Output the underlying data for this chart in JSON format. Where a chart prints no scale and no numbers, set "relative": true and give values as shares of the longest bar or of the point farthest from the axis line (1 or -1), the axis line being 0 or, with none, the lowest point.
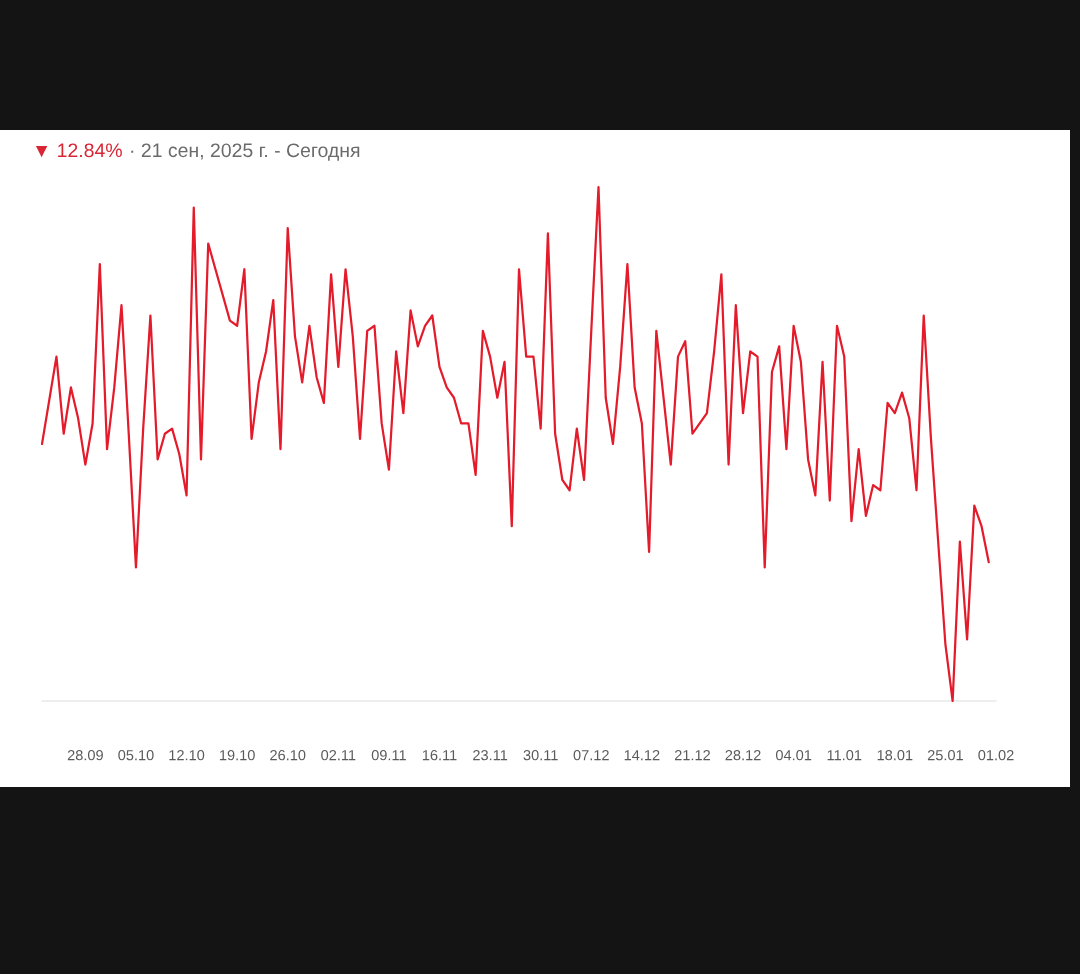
{
  "chart_data": {
    "type": "line",
    "relative": true,
    "title": "▼ 12.84%",
    "subtitle": "· 21 сен, 2025 г. - Сегодня",
    "tick_labels": "x",
    "x": [
      "2025-09-22",
      "2025-09-24",
      "2025-09-25",
      "2025-09-26",
      "2025-09-27",
      "2025-09-28",
      "2025-09-29",
      "2025-09-30",
      "2025-10-01",
      "2025-10-02",
      "2025-10-03",
      "2025-10-04",
      "2025-10-05",
      "2025-10-06",
      "2025-10-07",
      "2025-10-08",
      "2025-10-09",
      "2025-10-10",
      "2025-10-11",
      "2025-10-12",
      "2025-10-13",
      "2025-10-14",
      "2025-10-15",
      "2025-10-16",
      "2025-10-18",
      "2025-10-19",
      "2025-10-20",
      "2025-10-21",
      "2025-10-22",
      "2025-10-23",
      "2025-10-24",
      "2025-10-25",
      "2025-10-26",
      "2025-10-27",
      "2025-10-28",
      "2025-10-29",
      "2025-10-30",
      "2025-10-31",
      "2025-11-01",
      "2025-11-02",
      "2025-11-03",
      "2025-11-04",
      "2025-11-05",
      "2025-11-06",
      "2025-11-07",
      "2025-11-08",
      "2025-11-09",
      "2025-11-10",
      "2025-11-11",
      "2025-11-12",
      "2025-11-13",
      "2025-11-14",
      "2025-11-15",
      "2025-11-16",
      "2025-11-17",
      "2025-11-18",
      "2025-11-19",
      "2025-11-20",
      "2025-11-21",
      "2025-11-22",
      "2025-11-23",
      "2025-11-24",
      "2025-11-25",
      "2025-11-26",
      "2025-11-27",
      "2025-11-28",
      "2025-11-29",
      "2025-11-30",
      "2025-12-01",
      "2025-12-02",
      "2025-12-03",
      "2025-12-04",
      "2025-12-05",
      "2025-12-06",
      "2025-12-07",
      "2025-12-08",
      "2025-12-09",
      "2025-12-10",
      "2025-12-11",
      "2025-12-12",
      "2025-12-13",
      "2025-12-14",
      "2025-12-15",
      "2025-12-16",
      "2025-12-17",
      "2025-12-18",
      "2025-12-19",
      "2025-12-20",
      "2025-12-21",
      "2025-12-22",
      "2025-12-23",
      "2025-12-24",
      "2025-12-25",
      "2025-12-26",
      "2025-12-27",
      "2025-12-28",
      "2025-12-29",
      "2025-12-30",
      "2025-12-31",
      "2026-01-01",
      "2026-01-02",
      "2026-01-03",
      "2026-01-04",
      "2026-01-05",
      "2026-01-06",
      "2026-01-07",
      "2026-01-08",
      "2026-01-09",
      "2026-01-10",
      "2026-01-11",
      "2026-01-12",
      "2026-01-13",
      "2026-01-14",
      "2026-01-15",
      "2026-01-16",
      "2026-01-17",
      "2026-01-18",
      "2026-01-19",
      "2026-01-20",
      "2026-01-21",
      "2026-01-22",
      "2026-01-23",
      "2026-01-25",
      "2026-01-26",
      "2026-01-27",
      "2026-01-28",
      "2026-01-29",
      "2026-01-30",
      "2026-01-31"
    ],
    "series": [
      {
        "color": "#e31b2a",
        "values": [
          0.5,
          0.67,
          0.52,
          0.61,
          0.55,
          0.46,
          0.54,
          0.85,
          0.49,
          0.61,
          0.77,
          0.52,
          0.26,
          0.53,
          0.75,
          0.47,
          0.52,
          0.53,
          0.48,
          0.4,
          0.96,
          0.47,
          0.89,
          0.84,
          0.74,
          0.73,
          0.84,
          0.51,
          0.62,
          0.68,
          0.78,
          0.49,
          0.92,
          0.71,
          0.62,
          0.73,
          0.63,
          0.58,
          0.83,
          0.65,
          0.84,
          0.71,
          0.51,
          0.72,
          0.73,
          0.54,
          0.45,
          0.68,
          0.56,
          0.76,
          0.69,
          0.73,
          0.75,
          0.65,
          0.61,
          0.59,
          0.54,
          0.54,
          0.44,
          0.72,
          0.67,
          0.59,
          0.66,
          0.34,
          0.84,
          0.67,
          0.67,
          0.53,
          0.91,
          0.52,
          0.43,
          0.41,
          0.53,
          0.43,
          0.72,
          1.0,
          0.59,
          0.5,
          0.65,
          0.85,
          0.61,
          0.54,
          0.29,
          0.72,
          0.59,
          0.46,
          0.67,
          0.7,
          0.52,
          0.54,
          0.56,
          0.68,
          0.83,
          0.46,
          0.77,
          0.56,
          0.68,
          0.67,
          0.26,
          0.64,
          0.69,
          0.49,
          0.73,
          0.66,
          0.47,
          0.4,
          0.66,
          0.39,
          0.73,
          0.67,
          0.35,
          0.49,
          0.36,
          0.42,
          0.41,
          0.58,
          0.56,
          0.6,
          0.55,
          0.41,
          0.75,
          0.51,
          0.11,
          0,
          0.31,
          0.12,
          0.38,
          0.34,
          0.27
        ]
      }
    ],
    "xlim": [
      "2025-09-22",
      "2026-02-01"
    ],
    "xticks": [
      {
        "value": "2025-09-28",
        "label": "28.09"
      },
      {
        "value": "2025-10-05",
        "label": "05.10"
      },
      {
        "value": "2025-10-12",
        "label": "12.10"
      },
      {
        "value": "2025-10-19",
        "label": "19.10"
      },
      {
        "value": "2025-10-26",
        "label": "26.10"
      },
      {
        "value": "2025-11-02",
        "label": "02.11"
      },
      {
        "value": "2025-11-09",
        "label": "09.11"
      },
      {
        "value": "2025-11-16",
        "label": "16.11"
      },
      {
        "value": "2025-11-23",
        "label": "23.11"
      },
      {
        "value": "2025-11-30",
        "label": "30.11"
      },
      {
        "value": "2025-12-07",
        "label": "07.12"
      },
      {
        "value": "2025-12-14",
        "label": "14.12"
      },
      {
        "value": "2025-12-21",
        "label": "21.12"
      },
      {
        "value": "2025-12-28",
        "label": "28.12"
      },
      {
        "value": "2026-01-04",
        "label": "04.01"
      },
      {
        "value": "2026-01-11",
        "label": "11.01"
      },
      {
        "value": "2026-01-18",
        "label": "18.01"
      },
      {
        "value": "2026-01-25",
        "label": "25.01"
      },
      {
        "value": "2026-02-01",
        "label": "01.02"
      }
    ]
  }
}
